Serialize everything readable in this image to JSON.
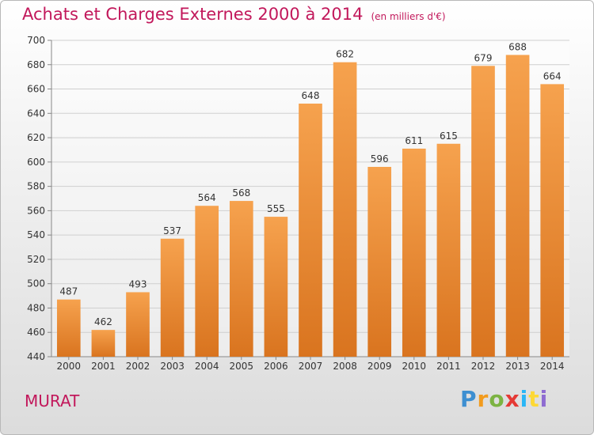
{
  "header": {
    "title": "Achats et Charges Externes 2000 à 2014",
    "subtitle": "(en milliers d'€)"
  },
  "footer": {
    "commune": "MURAT",
    "logo_letters": [
      "P",
      "r",
      "o",
      "x",
      "i",
      "t",
      "i"
    ],
    "logo_colors": [
      "#3d8fd1",
      "#f29b1d",
      "#7cb342",
      "#e53935",
      "#29b6f6",
      "#fdd835",
      "#8e6bd1"
    ]
  },
  "colors": {
    "bar_top": "#f6a24e",
    "bar_bottom": "#d9741f",
    "grid": "#cfcfcf",
    "title": "#c2185b"
  },
  "chart_data": {
    "type": "bar",
    "title": "Achats et Charges Externes 2000 à 2014",
    "subtitle": "(en milliers d'€)",
    "categories": [
      "2000",
      "2001",
      "2002",
      "2003",
      "2004",
      "2005",
      "2006",
      "2007",
      "2008",
      "2009",
      "2010",
      "2011",
      "2012",
      "2013",
      "2014"
    ],
    "values": [
      487,
      462,
      493,
      537,
      564,
      568,
      555,
      648,
      682,
      596,
      611,
      615,
      679,
      688,
      664
    ],
    "ylim": [
      440,
      700
    ],
    "yticks": [
      440,
      460,
      480,
      500,
      520,
      540,
      560,
      580,
      600,
      620,
      640,
      660,
      680,
      700
    ],
    "grid": true,
    "data_labels": true
  }
}
